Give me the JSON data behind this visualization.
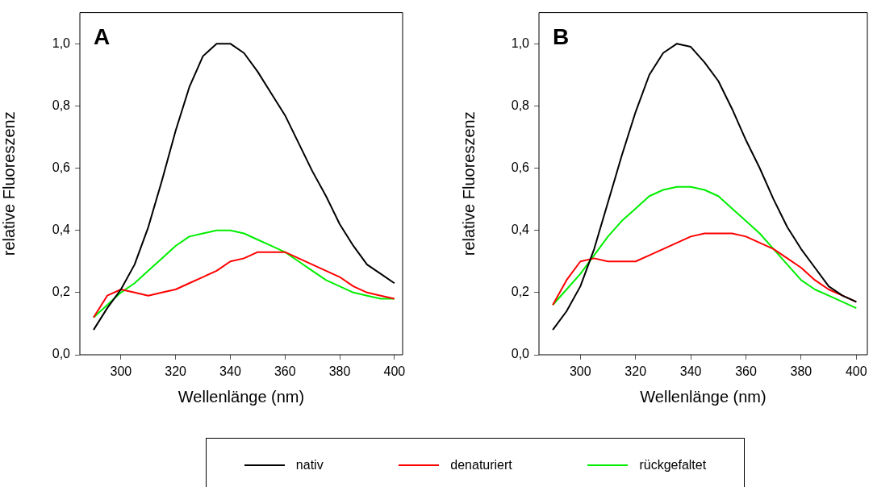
{
  "chart_data": [
    {
      "type": "line",
      "title": "A",
      "xlabel": "Wellenlänge (nm)",
      "ylabel": "relative Fluoreszenz",
      "legend": "bottom",
      "xlim": [
        285,
        403
      ],
      "xticks": [
        300,
        320,
        340,
        360,
        380,
        400
      ],
      "ylim": [
        0,
        1.1
      ],
      "yticks": [
        {
          "value": 0,
          "label": "0,0"
        },
        {
          "value": 0.2,
          "label": "0,2"
        },
        {
          "value": 0.4,
          "label": "0,4"
        },
        {
          "value": 0.6,
          "label": "0,6"
        },
        {
          "value": 0.8,
          "label": "0,8"
        },
        {
          "value": 1,
          "label": "1,0"
        }
      ],
      "x": [
        290,
        295,
        300,
        305,
        310,
        315,
        320,
        325,
        330,
        335,
        340,
        345,
        350,
        355,
        360,
        365,
        370,
        375,
        380,
        385,
        390,
        395,
        400
      ],
      "series": [
        {
          "name": "nativ",
          "color": "#000000",
          "values": [
            0.08,
            0.15,
            0.21,
            0.29,
            0.41,
            0.56,
            0.72,
            0.86,
            0.96,
            1.0,
            1.0,
            0.97,
            0.91,
            0.84,
            0.77,
            0.68,
            0.59,
            0.51,
            0.42,
            0.35,
            0.29,
            0.26,
            0.23
          ]
        },
        {
          "name": "denaturiert",
          "color": "#ff0000",
          "values": [
            0.12,
            0.19,
            0.21,
            0.2,
            0.19,
            0.2,
            0.21,
            0.23,
            0.25,
            0.27,
            0.3,
            0.31,
            0.33,
            0.33,
            0.33,
            0.31,
            0.29,
            0.27,
            0.25,
            0.22,
            0.2,
            0.19,
            0.18
          ]
        },
        {
          "name": "rückgefaltet",
          "color": "#00ee00",
          "values": [
            0.12,
            0.16,
            0.2,
            0.23,
            0.27,
            0.31,
            0.35,
            0.38,
            0.39,
            0.4,
            0.4,
            0.39,
            0.37,
            0.35,
            0.33,
            0.3,
            0.27,
            0.24,
            0.22,
            0.2,
            0.19,
            0.18,
            0.18
          ]
        }
      ]
    },
    {
      "type": "line",
      "title": "B",
      "xlabel": "Wellenlänge (nm)",
      "ylabel": "relative Fluoreszenz",
      "legend": "bottom",
      "xlim": [
        285,
        404
      ],
      "xticks": [
        300,
        320,
        340,
        360,
        380,
        400
      ],
      "ylim": [
        0,
        1.1
      ],
      "yticks": [
        {
          "value": 0,
          "label": "0,0"
        },
        {
          "value": 0.2,
          "label": "0,2"
        },
        {
          "value": 0.4,
          "label": "0,4"
        },
        {
          "value": 0.6,
          "label": "0,6"
        },
        {
          "value": 0.8,
          "label": "0,8"
        },
        {
          "value": 1,
          "label": "1,0"
        }
      ],
      "x": [
        290,
        295,
        300,
        305,
        310,
        315,
        320,
        325,
        330,
        335,
        340,
        345,
        350,
        355,
        360,
        365,
        370,
        375,
        380,
        385,
        390,
        395,
        400
      ],
      "series": [
        {
          "name": "nativ",
          "color": "#000000",
          "values": [
            0.08,
            0.14,
            0.22,
            0.34,
            0.49,
            0.64,
            0.78,
            0.9,
            0.97,
            1.0,
            0.99,
            0.94,
            0.88,
            0.79,
            0.69,
            0.6,
            0.5,
            0.41,
            0.34,
            0.28,
            0.22,
            0.19,
            0.17
          ]
        },
        {
          "name": "denaturiert",
          "color": "#ff0000",
          "values": [
            0.16,
            0.24,
            0.3,
            0.31,
            0.3,
            0.3,
            0.3,
            0.32,
            0.34,
            0.36,
            0.38,
            0.39,
            0.39,
            0.39,
            0.38,
            0.36,
            0.34,
            0.31,
            0.28,
            0.24,
            0.21,
            0.19,
            0.17
          ]
        },
        {
          "name": "rückgefaltet",
          "color": "#00ee00",
          "values": [
            0.16,
            0.21,
            0.26,
            0.32,
            0.38,
            0.43,
            0.47,
            0.51,
            0.53,
            0.54,
            0.54,
            0.53,
            0.51,
            0.47,
            0.43,
            0.39,
            0.34,
            0.29,
            0.24,
            0.21,
            0.19,
            0.17,
            0.15
          ]
        }
      ]
    }
  ]
}
